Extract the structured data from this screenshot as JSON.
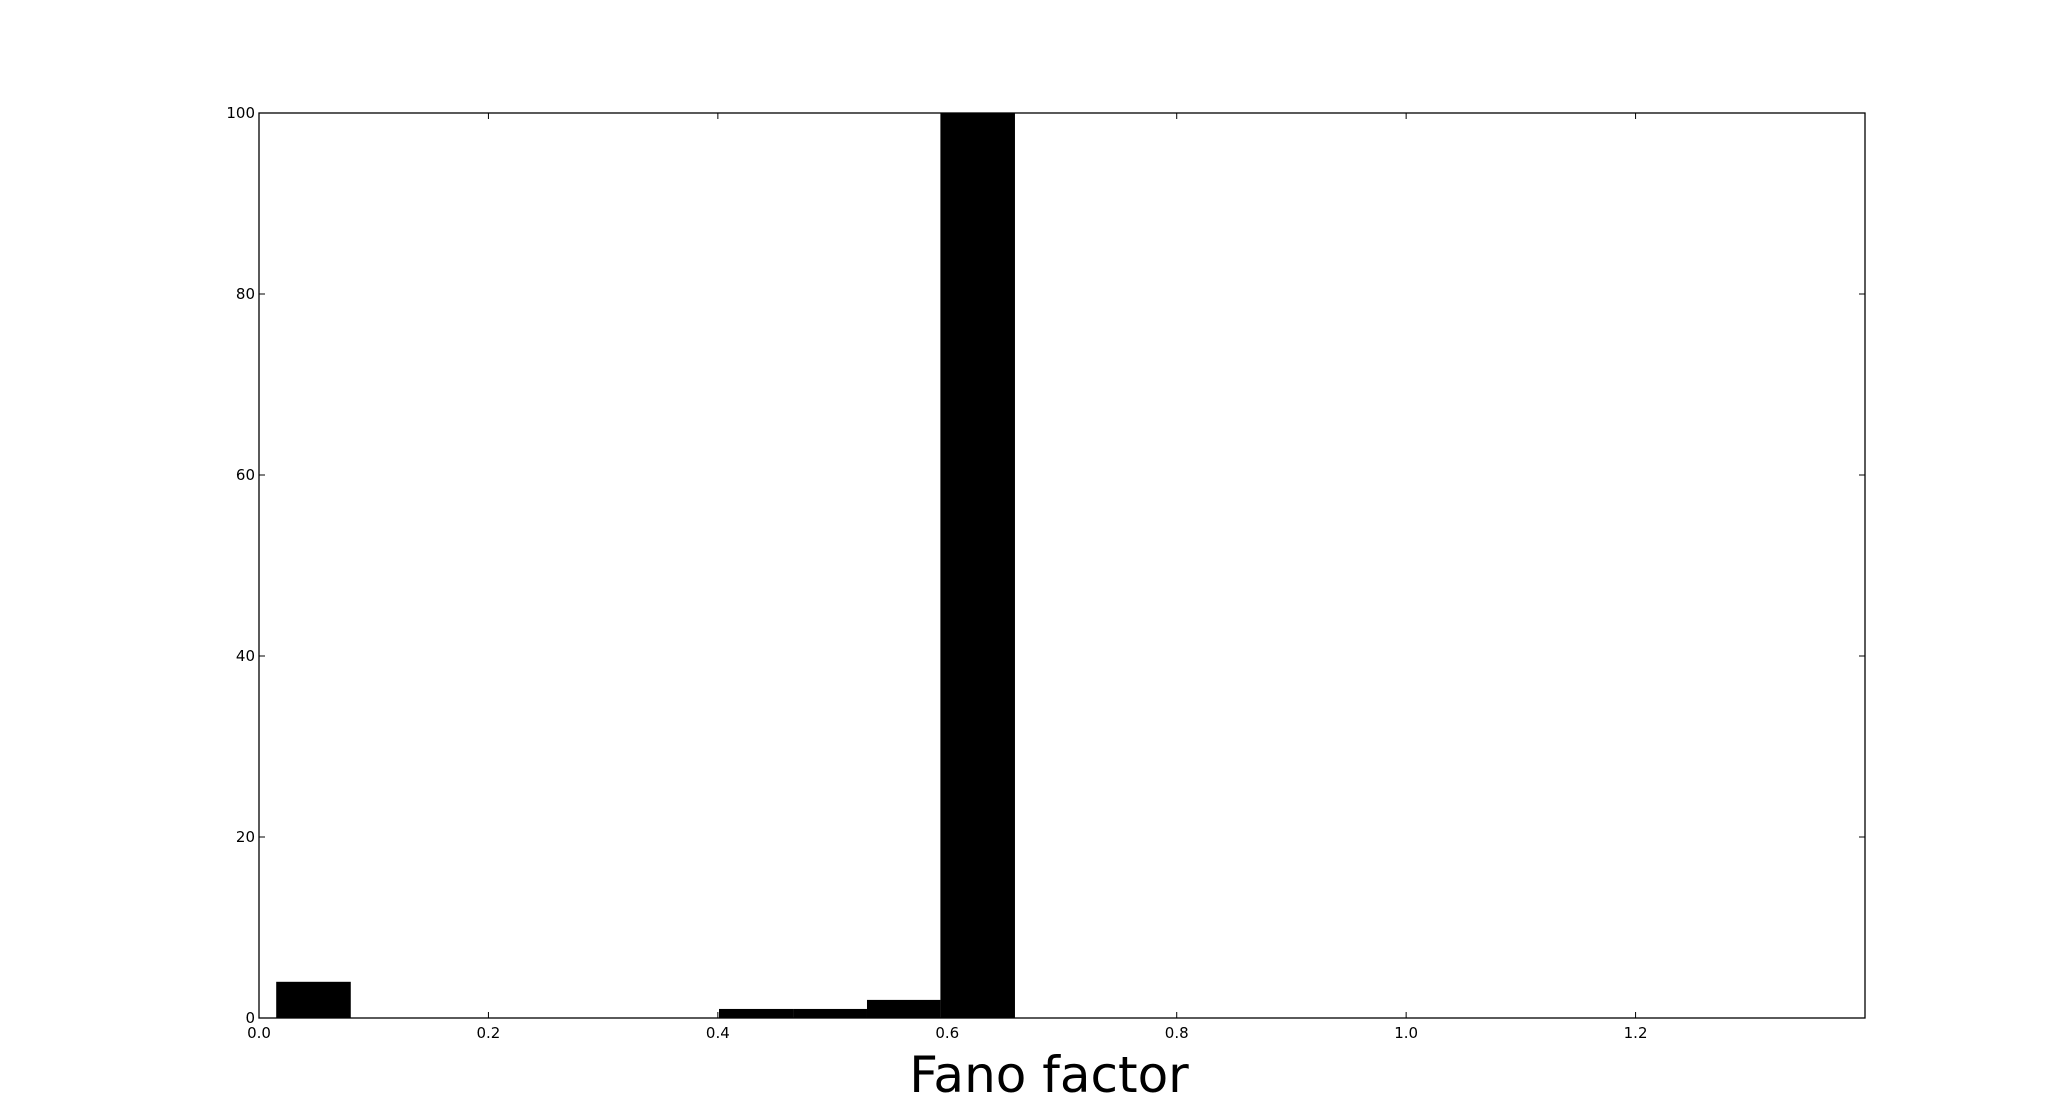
{
  "chart_data": {
    "type": "bar",
    "title": "",
    "xlabel": "Fano factor",
    "ylabel": "",
    "xlim": [
      0.0,
      1.4
    ],
    "ylim": [
      0,
      100
    ],
    "xticks": [
      0.0,
      0.2,
      0.4,
      0.6,
      0.8,
      1.0,
      1.2
    ],
    "xtick_labels": [
      "0.0",
      "0.2",
      "0.4",
      "0.6",
      "0.8",
      "1.0",
      "1.2"
    ],
    "yticks": [
      0,
      20,
      40,
      60,
      80,
      100
    ],
    "ytick_labels": [
      "0",
      "20",
      "40",
      "60",
      "80",
      "100"
    ],
    "grid": false,
    "bar_color": "#000000",
    "bars": [
      {
        "x0": 0.015,
        "x1": 0.08,
        "value": 4
      },
      {
        "x0": 0.08,
        "x1": 0.144,
        "value": 0
      },
      {
        "x0": 0.144,
        "x1": 0.208,
        "value": 0
      },
      {
        "x0": 0.208,
        "x1": 0.273,
        "value": 0
      },
      {
        "x0": 0.273,
        "x1": 0.337,
        "value": 0
      },
      {
        "x0": 0.337,
        "x1": 0.401,
        "value": 0
      },
      {
        "x0": 0.401,
        "x1": 0.466,
        "value": 1
      },
      {
        "x0": 0.466,
        "x1": 0.53,
        "value": 1
      },
      {
        "x0": 0.53,
        "x1": 0.594,
        "value": 2
      },
      {
        "x0": 0.594,
        "x1": 0.659,
        "value": 100
      }
    ]
  }
}
